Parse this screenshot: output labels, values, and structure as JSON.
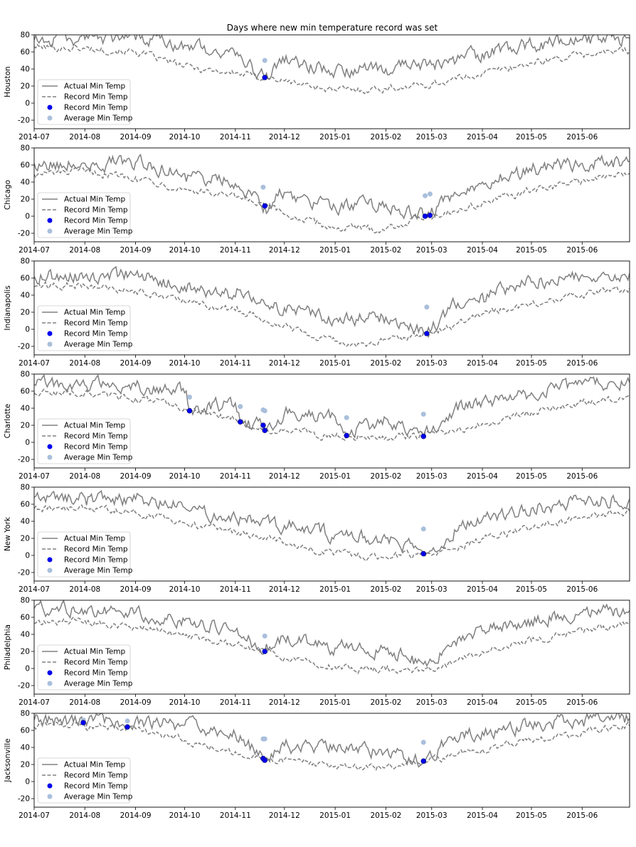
{
  "figure": {
    "title": "Days where new min temperature record was set"
  },
  "colors": {
    "actual": "#808080",
    "record": "#808080",
    "record_marker": "#0000ee",
    "average_marker": "#a9bfdb"
  },
  "chart_data": {
    "type": "line",
    "title": "Days where new min temperature record was set",
    "x_ticks": [
      "2014-07",
      "2014-08",
      "2014-09",
      "2014-10",
      "2014-11",
      "2014-12",
      "2015-01",
      "2015-02",
      "2015-03",
      "2015-04",
      "2015-05",
      "2015-06"
    ],
    "x_range": [
      "2014-07-01",
      "2015-06-30"
    ],
    "ylim": [
      -30,
      80
    ],
    "y_ticks": [
      -20,
      0,
      20,
      40,
      60,
      80
    ],
    "legend": {
      "placement": "lower-left",
      "entries": [
        "Actual Min Temp",
        "Record Min Temp",
        "Record Min Temp",
        "Average Min Temp"
      ]
    },
    "panels": [
      {
        "ylabel": "Houston",
        "actual_anchors": [
          [
            "2014-07-01",
            74
          ],
          [
            "2014-08-01",
            75
          ],
          [
            "2014-09-01",
            74
          ],
          [
            "2014-10-01",
            68
          ],
          [
            "2014-11-01",
            56
          ],
          [
            "2014-11-19",
            30
          ],
          [
            "2014-12-01",
            48
          ],
          [
            "2015-01-01",
            37
          ],
          [
            "2015-02-01",
            40
          ],
          [
            "2015-03-01",
            45
          ],
          [
            "2015-04-01",
            58
          ],
          [
            "2015-05-01",
            68
          ],
          [
            "2015-06-01",
            74
          ],
          [
            "2015-06-30",
            76
          ]
        ],
        "record_anchors": [
          [
            "2014-07-01",
            66
          ],
          [
            "2014-08-01",
            64
          ],
          [
            "2014-09-01",
            60
          ],
          [
            "2014-10-01",
            43
          ],
          [
            "2014-11-01",
            35
          ],
          [
            "2014-11-19",
            30
          ],
          [
            "2014-12-01",
            26
          ],
          [
            "2015-01-01",
            15
          ],
          [
            "2015-02-01",
            17
          ],
          [
            "2015-03-01",
            22
          ],
          [
            "2015-04-01",
            35
          ],
          [
            "2015-05-01",
            47
          ],
          [
            "2015-06-01",
            57
          ],
          [
            "2015-06-30",
            62
          ]
        ],
        "record_points": [
          [
            "2014-11-19",
            30
          ]
        ],
        "average_points": [
          [
            "2014-11-19",
            50
          ]
        ]
      },
      {
        "ylabel": "Chicago",
        "actual_anchors": [
          [
            "2014-07-01",
            62
          ],
          [
            "2014-08-01",
            62
          ],
          [
            "2014-09-01",
            63
          ],
          [
            "2014-10-01",
            50
          ],
          [
            "2014-11-01",
            38
          ],
          [
            "2014-11-19",
            12
          ],
          [
            "2014-12-01",
            28
          ],
          [
            "2015-01-01",
            10
          ],
          [
            "2015-02-01",
            14
          ],
          [
            "2015-02-25",
            0
          ],
          [
            "2015-02-28",
            1
          ],
          [
            "2015-03-15",
            28
          ],
          [
            "2015-04-01",
            40
          ],
          [
            "2015-05-01",
            53
          ],
          [
            "2015-06-01",
            62
          ],
          [
            "2015-06-30",
            64
          ]
        ],
        "record_anchors": [
          [
            "2014-07-01",
            49
          ],
          [
            "2014-08-01",
            52
          ],
          [
            "2014-09-01",
            46
          ],
          [
            "2014-10-01",
            32
          ],
          [
            "2014-11-01",
            22
          ],
          [
            "2014-11-19",
            12
          ],
          [
            "2014-12-01",
            2
          ],
          [
            "2015-01-01",
            -14
          ],
          [
            "2015-02-01",
            -15
          ],
          [
            "2015-02-25",
            0
          ],
          [
            "2015-03-15",
            6
          ],
          [
            "2015-04-01",
            15
          ],
          [
            "2015-05-01",
            30
          ],
          [
            "2015-06-01",
            42
          ],
          [
            "2015-06-30",
            50
          ]
        ],
        "record_points": [
          [
            "2014-11-19",
            12
          ],
          [
            "2015-02-25",
            0
          ],
          [
            "2015-02-28",
            1
          ]
        ],
        "average_points": [
          [
            "2014-11-18",
            34
          ],
          [
            "2015-02-25",
            24
          ],
          [
            "2015-02-28",
            26
          ]
        ]
      },
      {
        "ylabel": "Indianapolis",
        "actual_anchors": [
          [
            "2014-07-01",
            62
          ],
          [
            "2014-08-01",
            62
          ],
          [
            "2014-09-01",
            64
          ],
          [
            "2014-10-01",
            50
          ],
          [
            "2014-11-01",
            38
          ],
          [
            "2014-12-01",
            25
          ],
          [
            "2015-01-01",
            12
          ],
          [
            "2015-02-01",
            14
          ],
          [
            "2015-02-26",
            -5
          ],
          [
            "2015-03-15",
            30
          ],
          [
            "2015-04-01",
            42
          ],
          [
            "2015-05-01",
            55
          ],
          [
            "2015-06-01",
            64
          ],
          [
            "2015-06-30",
            66
          ]
        ],
        "record_anchors": [
          [
            "2014-07-01",
            50
          ],
          [
            "2014-08-01",
            51
          ],
          [
            "2014-09-01",
            45
          ],
          [
            "2014-10-01",
            32
          ],
          [
            "2014-11-01",
            22
          ],
          [
            "2014-12-01",
            5
          ],
          [
            "2015-01-01",
            -14
          ],
          [
            "2015-01-20",
            -20
          ],
          [
            "2015-02-01",
            -12
          ],
          [
            "2015-02-26",
            -5
          ],
          [
            "2015-03-15",
            5
          ],
          [
            "2015-04-01",
            18
          ],
          [
            "2015-05-01",
            30
          ],
          [
            "2015-06-01",
            40
          ],
          [
            "2015-06-30",
            48
          ]
        ],
        "record_points": [
          [
            "2015-02-26",
            -5
          ]
        ],
        "average_points": [
          [
            "2015-02-26",
            26
          ]
        ]
      },
      {
        "ylabel": "Charlotte",
        "actual_anchors": [
          [
            "2014-07-01",
            68
          ],
          [
            "2014-08-01",
            67
          ],
          [
            "2014-09-01",
            66
          ],
          [
            "2014-10-01",
            58
          ],
          [
            "2014-10-04",
            37
          ],
          [
            "2014-11-01",
            46
          ],
          [
            "2014-11-04",
            24
          ],
          [
            "2014-11-18",
            20
          ],
          [
            "2014-11-19",
            14
          ],
          [
            "2014-12-01",
            34
          ],
          [
            "2015-01-01",
            30
          ],
          [
            "2015-01-08",
            8
          ],
          [
            "2015-02-01",
            28
          ],
          [
            "2015-02-24",
            7
          ],
          [
            "2015-03-15",
            40
          ],
          [
            "2015-04-01",
            48
          ],
          [
            "2015-05-01",
            58
          ],
          [
            "2015-06-01",
            68
          ],
          [
            "2015-06-30",
            70
          ]
        ],
        "record_anchors": [
          [
            "2014-07-01",
            58
          ],
          [
            "2014-08-01",
            58
          ],
          [
            "2014-09-01",
            52
          ],
          [
            "2014-10-01",
            40
          ],
          [
            "2014-10-04",
            37
          ],
          [
            "2014-11-01",
            28
          ],
          [
            "2014-11-04",
            24
          ],
          [
            "2014-11-19",
            14
          ],
          [
            "2014-12-01",
            15
          ],
          [
            "2015-01-01",
            6
          ],
          [
            "2015-01-08",
            8
          ],
          [
            "2015-02-01",
            6
          ],
          [
            "2015-02-24",
            7
          ],
          [
            "2015-03-15",
            12
          ],
          [
            "2015-04-01",
            22
          ],
          [
            "2015-05-01",
            35
          ],
          [
            "2015-06-01",
            47
          ],
          [
            "2015-06-30",
            55
          ]
        ],
        "record_points": [
          [
            "2014-10-04",
            37
          ],
          [
            "2014-11-04",
            24
          ],
          [
            "2014-11-18",
            20
          ],
          [
            "2014-11-19",
            14
          ],
          [
            "2015-01-08",
            8
          ],
          [
            "2015-02-24",
            7
          ]
        ],
        "average_points": [
          [
            "2014-10-04",
            53
          ],
          [
            "2014-11-04",
            42
          ],
          [
            "2014-11-18",
            38
          ],
          [
            "2014-11-19",
            37
          ],
          [
            "2015-01-08",
            29
          ],
          [
            "2015-02-24",
            33
          ]
        ]
      },
      {
        "ylabel": "New York",
        "actual_anchors": [
          [
            "2014-07-01",
            68
          ],
          [
            "2014-08-01",
            68
          ],
          [
            "2014-09-01",
            66
          ],
          [
            "2014-10-01",
            56
          ],
          [
            "2014-11-01",
            45
          ],
          [
            "2014-12-01",
            35
          ],
          [
            "2015-01-01",
            24
          ],
          [
            "2015-02-01",
            20
          ],
          [
            "2015-02-24",
            2
          ],
          [
            "2015-03-15",
            30
          ],
          [
            "2015-04-01",
            42
          ],
          [
            "2015-05-01",
            55
          ],
          [
            "2015-06-01",
            64
          ],
          [
            "2015-06-30",
            66
          ]
        ],
        "record_anchors": [
          [
            "2014-07-01",
            55
          ],
          [
            "2014-08-01",
            56
          ],
          [
            "2014-09-01",
            50
          ],
          [
            "2014-10-01",
            38
          ],
          [
            "2014-11-01",
            28
          ],
          [
            "2014-12-01",
            15
          ],
          [
            "2015-01-01",
            2
          ],
          [
            "2015-02-01",
            -2
          ],
          [
            "2015-02-24",
            2
          ],
          [
            "2015-03-15",
            8
          ],
          [
            "2015-04-01",
            20
          ],
          [
            "2015-05-01",
            32
          ],
          [
            "2015-06-01",
            44
          ],
          [
            "2015-06-30",
            52
          ]
        ],
        "record_points": [
          [
            "2015-02-24",
            2
          ]
        ],
        "average_points": [
          [
            "2015-02-24",
            31
          ]
        ]
      },
      {
        "ylabel": "Philadelphia",
        "actual_anchors": [
          [
            "2014-07-01",
            70
          ],
          [
            "2014-08-01",
            68
          ],
          [
            "2014-09-01",
            66
          ],
          [
            "2014-10-01",
            56
          ],
          [
            "2014-11-01",
            44
          ],
          [
            "2014-11-19",
            20
          ],
          [
            "2014-12-01",
            35
          ],
          [
            "2015-01-01",
            24
          ],
          [
            "2015-02-01",
            22
          ],
          [
            "2015-02-24",
            5
          ],
          [
            "2015-03-15",
            32
          ],
          [
            "2015-04-01",
            44
          ],
          [
            "2015-05-01",
            56
          ],
          [
            "2015-06-01",
            66
          ],
          [
            "2015-06-30",
            68
          ]
        ],
        "record_anchors": [
          [
            "2014-07-01",
            53
          ],
          [
            "2014-08-01",
            56
          ],
          [
            "2014-09-01",
            48
          ],
          [
            "2014-10-01",
            38
          ],
          [
            "2014-11-01",
            28
          ],
          [
            "2014-11-19",
            20
          ],
          [
            "2014-12-01",
            12
          ],
          [
            "2015-01-01",
            2
          ],
          [
            "2015-02-01",
            -2
          ],
          [
            "2015-02-24",
            -3
          ],
          [
            "2015-03-15",
            8
          ],
          [
            "2015-04-01",
            20
          ],
          [
            "2015-05-01",
            32
          ],
          [
            "2015-06-01",
            45
          ],
          [
            "2015-06-30",
            52
          ]
        ],
        "record_points": [
          [
            "2014-11-19",
            20
          ]
        ],
        "average_points": [
          [
            "2014-11-19",
            38
          ]
        ]
      },
      {
        "ylabel": "Jacksonville",
        "actual_anchors": [
          [
            "2014-07-01",
            72
          ],
          [
            "2014-07-31",
            69
          ],
          [
            "2014-08-01",
            73
          ],
          [
            "2014-08-27",
            64
          ],
          [
            "2014-09-01",
            72
          ],
          [
            "2014-10-01",
            66
          ],
          [
            "2014-11-01",
            55
          ],
          [
            "2014-11-18",
            27
          ],
          [
            "2014-11-19",
            25
          ],
          [
            "2014-12-01",
            42
          ],
          [
            "2015-01-01",
            38
          ],
          [
            "2015-02-01",
            36
          ],
          [
            "2015-02-24",
            24
          ],
          [
            "2015-03-15",
            52
          ],
          [
            "2015-04-01",
            58
          ],
          [
            "2015-05-01",
            66
          ],
          [
            "2015-06-01",
            72
          ],
          [
            "2015-06-30",
            74
          ]
        ],
        "record_anchors": [
          [
            "2014-07-01",
            64
          ],
          [
            "2014-07-31",
            69
          ],
          [
            "2014-08-01",
            65
          ],
          [
            "2014-08-27",
            64
          ],
          [
            "2014-09-01",
            62
          ],
          [
            "2014-10-01",
            48
          ],
          [
            "2014-11-01",
            35
          ],
          [
            "2014-11-19",
            25
          ],
          [
            "2014-12-01",
            26
          ],
          [
            "2015-01-01",
            18
          ],
          [
            "2015-02-01",
            18
          ],
          [
            "2015-02-24",
            24
          ],
          [
            "2015-03-15",
            30
          ],
          [
            "2015-04-01",
            38
          ],
          [
            "2015-05-01",
            48
          ],
          [
            "2015-06-01",
            58
          ],
          [
            "2015-06-30",
            65
          ]
        ],
        "record_points": [
          [
            "2014-07-31",
            69
          ],
          [
            "2014-08-27",
            64
          ],
          [
            "2014-11-18",
            27
          ],
          [
            "2014-11-19",
            25
          ],
          [
            "2015-02-24",
            24
          ]
        ],
        "average_points": [
          [
            "2014-07-31",
            72
          ],
          [
            "2014-08-27",
            71
          ],
          [
            "2014-11-18",
            50
          ],
          [
            "2014-11-19",
            50
          ],
          [
            "2015-02-24",
            46
          ]
        ]
      }
    ]
  }
}
